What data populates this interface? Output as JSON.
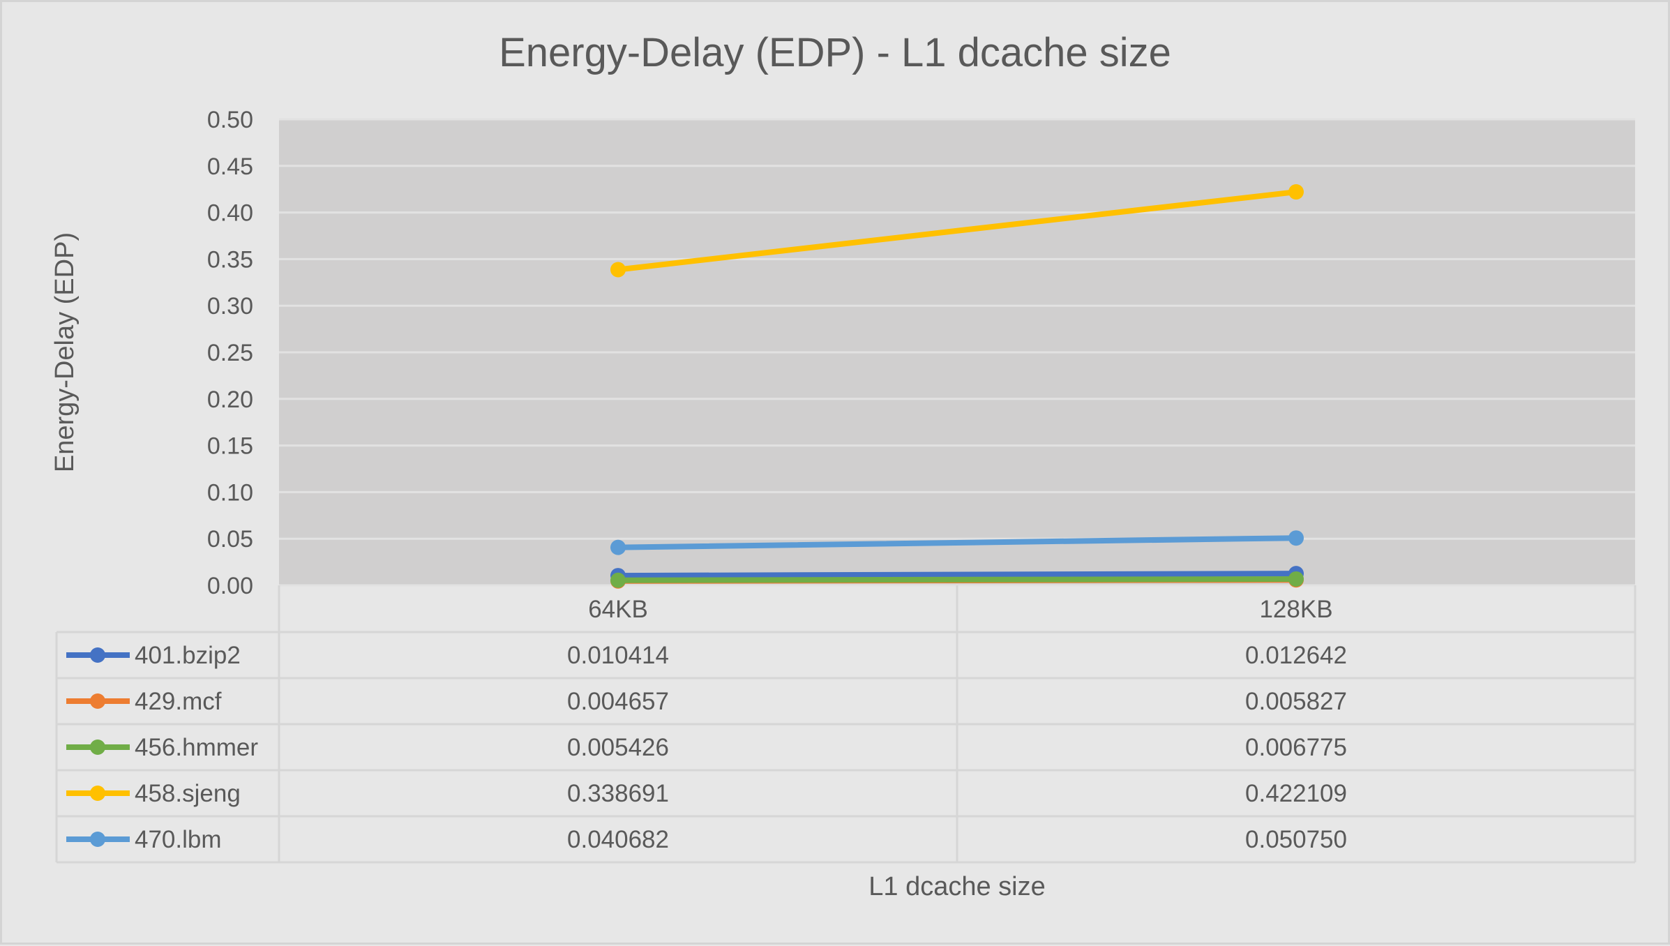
{
  "chart_data": {
    "type": "line",
    "title": "Energy-Delay (EDP) - L1 dcache size",
    "xlabel": "L1 dcache size",
    "ylabel": "Energy-Delay (EDP)",
    "categories": [
      "64KB",
      "128KB"
    ],
    "ylim": [
      0,
      0.5
    ],
    "yticks": [
      "0.00",
      "0.05",
      "0.10",
      "0.15",
      "0.20",
      "0.25",
      "0.30",
      "0.35",
      "0.40",
      "0.45",
      "0.50"
    ],
    "grid": true,
    "legend": "data-table-bottom",
    "series": [
      {
        "name": "401.bzip2",
        "color": "#4472c4",
        "values": [
          0.010414,
          0.012642
        ],
        "labels": [
          "0.010414",
          "0.012642"
        ]
      },
      {
        "name": "429.mcf",
        "color": "#ed7d31",
        "values": [
          0.004657,
          0.005827
        ],
        "labels": [
          "0.004657",
          "0.005827"
        ]
      },
      {
        "name": "456.hmmer",
        "color": "#70ad47",
        "values": [
          0.005426,
          0.006775
        ],
        "labels": [
          "0.005426",
          "0.006775"
        ]
      },
      {
        "name": "458.sjeng",
        "color": "#ffc000",
        "values": [
          0.338691,
          0.422109
        ],
        "labels": [
          "0.338691",
          "0.422109"
        ]
      },
      {
        "name": "470.lbm",
        "color": "#5b9bd5",
        "values": [
          0.040682,
          0.05075
        ],
        "labels": [
          "0.040682",
          "0.050750"
        ]
      }
    ]
  }
}
